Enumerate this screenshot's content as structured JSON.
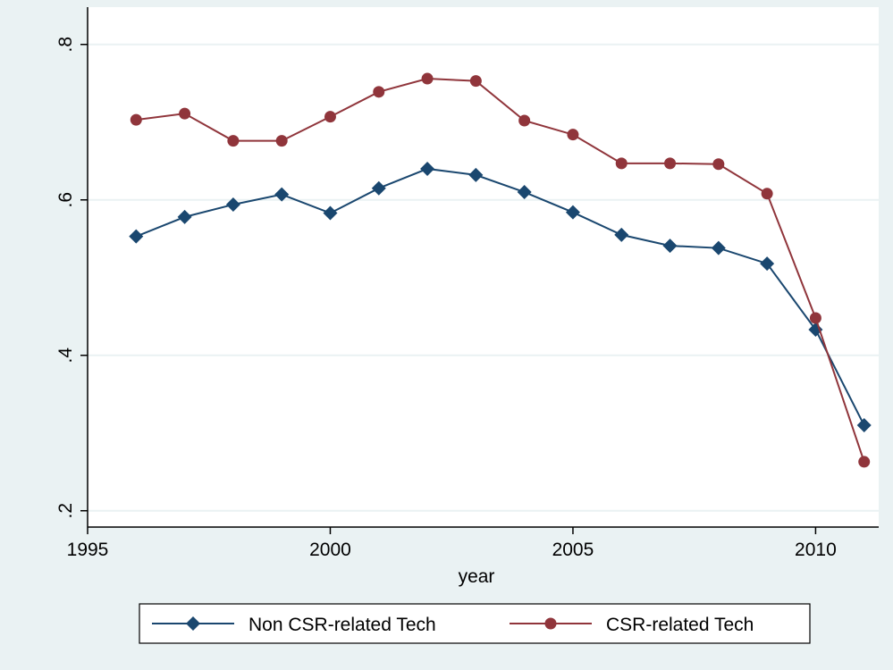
{
  "chart_data": {
    "type": "line",
    "x_label": "year",
    "x": [
      1996,
      1997,
      1998,
      1999,
      2000,
      2001,
      2002,
      2003,
      2004,
      2005,
      2006,
      2007,
      2008,
      2009,
      2010,
      2011
    ],
    "series": [
      {
        "name": "Non CSR-related Tech",
        "color": "#1a476f",
        "marker": "diamond",
        "values": [
          0.553,
          0.578,
          0.594,
          0.607,
          0.583,
          0.615,
          0.64,
          0.632,
          0.61,
          0.584,
          0.555,
          0.541,
          0.538,
          0.518,
          0.433,
          0.31
        ]
      },
      {
        "name": "CSR-related Tech",
        "color": "#90353b",
        "marker": "circle",
        "values": [
          0.703,
          0.711,
          0.676,
          0.676,
          0.707,
          0.739,
          0.756,
          0.753,
          0.702,
          0.684,
          0.647,
          0.647,
          0.646,
          0.608,
          0.448,
          0.263
        ]
      }
    ],
    "xlim": [
      1995,
      2011.3
    ],
    "xticks": [
      1995,
      2000,
      2005,
      2010
    ],
    "ylim": [
      0.179,
      0.848
    ],
    "yticks": [
      {
        "value": 0.2,
        "label": ".2"
      },
      {
        "value": 0.4,
        "label": ".4"
      },
      {
        "value": 0.6,
        "label": ".6"
      },
      {
        "value": 0.8,
        "label": ".8"
      }
    ],
    "grid": true,
    "legend": "bottom"
  }
}
